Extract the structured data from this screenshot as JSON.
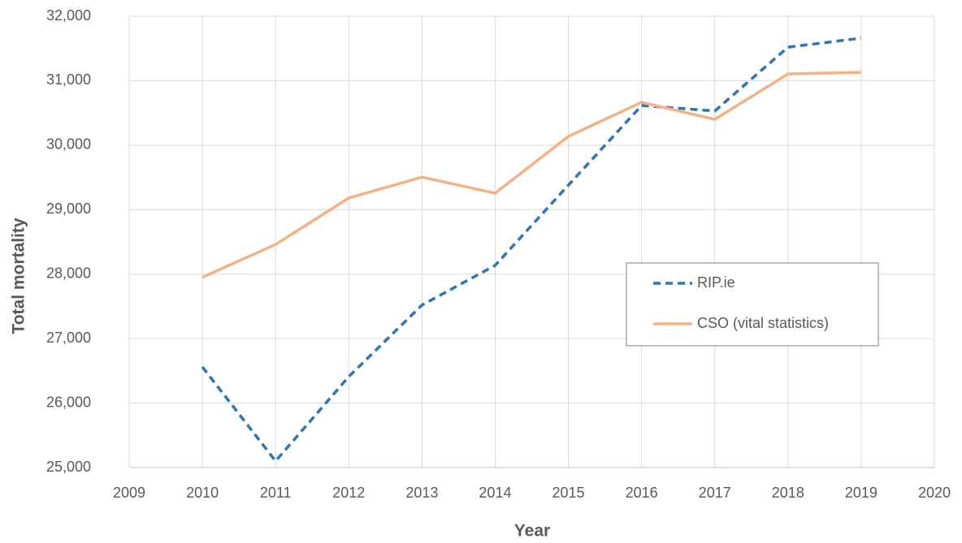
{
  "chart_data": {
    "type": "line",
    "x_label": "Year",
    "y_label": "Total mortality",
    "x": [
      2010,
      2011,
      2012,
      2013,
      2014,
      2015,
      2016,
      2017,
      2018,
      2019
    ],
    "series": [
      {
        "name": "RIP.ie",
        "color": "#2e75b6",
        "line_style": "dashed",
        "values": [
          26560,
          25100,
          26410,
          27520,
          28135,
          29380,
          30615,
          30530,
          31520,
          31660
        ]
      },
      {
        "name": "CSO (vital statistics)",
        "color": "#f4b183",
        "line_style": "solid",
        "values": [
          27950,
          28460,
          29180,
          29505,
          29255,
          30135,
          30665,
          30400,
          31105,
          31130
        ]
      }
    ],
    "xlim": [
      2009,
      2020
    ],
    "xticks": [
      2009,
      2010,
      2011,
      2012,
      2013,
      2014,
      2015,
      2016,
      2017,
      2018,
      2019,
      2020
    ],
    "ylim": [
      25000,
      32000
    ],
    "yticks": [
      {
        "value": 25000,
        "label": "25,000"
      },
      {
        "value": 26000,
        "label": "26,000"
      },
      {
        "value": 27000,
        "label": "27,000"
      },
      {
        "value": 28000,
        "label": "28,000"
      },
      {
        "value": 29000,
        "label": "29,000"
      },
      {
        "value": 30000,
        "label": "30,000"
      },
      {
        "value": 31000,
        "label": "31,000"
      },
      {
        "value": 32000,
        "label": "32,000"
      }
    ],
    "grid": true,
    "legend_position": "right"
  }
}
